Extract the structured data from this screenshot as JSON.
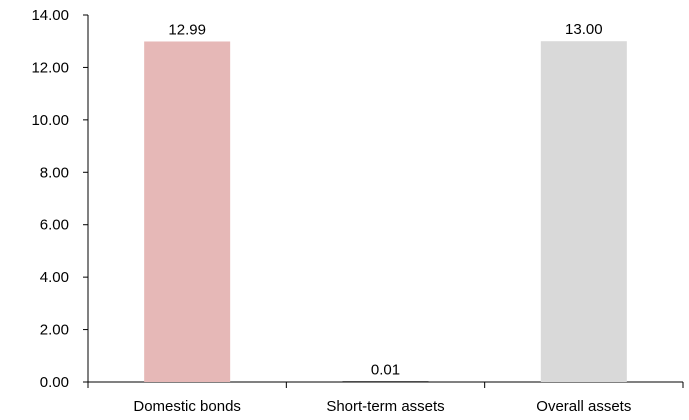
{
  "chart_data": {
    "type": "bar",
    "categories": [
      "Domestic bonds",
      "Short-term assets",
      "Overall assets"
    ],
    "values": [
      12.99,
      0.01,
      13.0
    ],
    "data_labels": [
      "12.99",
      "0.01",
      "13.00"
    ],
    "colors": [
      "#e6b8b7",
      "#4a4a4a",
      "#d9d9d9"
    ],
    "ylim": [
      0,
      14
    ],
    "yticks": [
      0,
      2,
      4,
      6,
      8,
      10,
      12,
      14
    ],
    "ytick_labels": [
      "0.00",
      "2.00",
      "4.00",
      "6.00",
      "8.00",
      "10.00",
      "12.00",
      "14.00"
    ],
    "grid": true,
    "legend": "none"
  }
}
